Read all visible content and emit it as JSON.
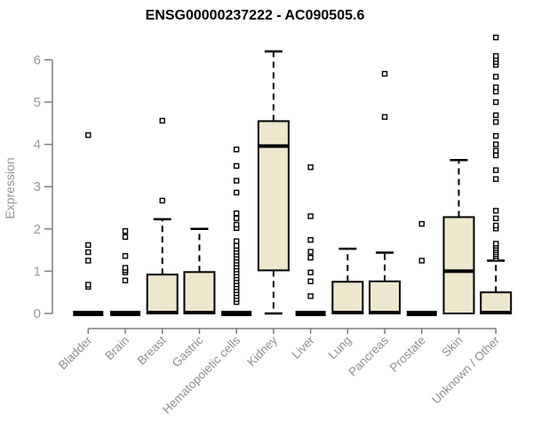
{
  "header": {
    "title": "ENSG00000237222 - AC090505.6"
  },
  "chart_data": {
    "type": "boxplot",
    "title": "ENSG00000237222 - AC090505.6",
    "xlabel": "",
    "ylabel": "Expression",
    "ylim": [
      0,
      6.6
    ],
    "yticks": [
      0,
      1,
      2,
      3,
      4,
      5,
      6
    ],
    "grid": false,
    "legend": null,
    "colors": {
      "box_fill": "#EDE7CD",
      "box_stroke": "#000000",
      "median": "#000000",
      "axis": "#7d7d7d",
      "y_tick_label": "#999999",
      "x_tick_label": "#8f8f8f",
      "title": "#000000",
      "background": "#ffffff"
    },
    "categories": [
      "Bladder",
      "Brain",
      "Breast",
      "Gastric",
      "Hematopoietic cells",
      "Kidney",
      "Liver",
      "Lung",
      "Pancreas",
      "Prostate",
      "Skin",
      "Unknown / Other"
    ],
    "boxes": [
      {
        "category": "Bladder",
        "min": 0,
        "q1": 0,
        "median": 0,
        "q3": 0,
        "max": 0,
        "outliers": [
          0.63,
          0.68,
          1.25,
          1.45,
          1.62,
          4.22
        ]
      },
      {
        "category": "Brain",
        "min": 0,
        "q1": 0,
        "median": 0,
        "q3": 0,
        "max": 0,
        "outliers": [
          0.78,
          0.97,
          1.02,
          1.08,
          1.36,
          1.81,
          1.95
        ]
      },
      {
        "category": "Breast",
        "min": 0,
        "q1": 0,
        "median": 0.02,
        "q3": 0.92,
        "max": 2.23,
        "outliers": [
          2.67,
          4.56
        ]
      },
      {
        "category": "Gastric",
        "min": 0,
        "q1": 0,
        "median": 0.02,
        "q3": 0.98,
        "max": 2.0,
        "outliers": []
      },
      {
        "category": "Hematopoietic cells",
        "min": 0,
        "q1": 0,
        "median": 0,
        "q3": 0,
        "max": 0,
        "outliers": [
          0.27,
          0.34,
          0.41,
          0.48,
          0.55,
          0.62,
          0.69,
          0.76,
          0.83,
          0.9,
          0.97,
          1.04,
          1.11,
          1.18,
          1.25,
          1.32,
          1.39,
          1.46,
          1.53,
          1.6,
          1.71,
          2.02,
          2.1,
          2.25,
          2.37,
          2.86,
          3.14,
          3.49,
          3.88
        ]
      },
      {
        "category": "Kidney",
        "min": 0,
        "q1": 1.02,
        "median": 3.96,
        "q3": 4.55,
        "max": 6.2,
        "outliers": []
      },
      {
        "category": "Liver",
        "min": 0,
        "q1": 0,
        "median": 0,
        "q3": 0,
        "max": 0,
        "outliers": [
          0.41,
          0.76,
          0.97,
          1.32,
          1.46,
          1.74,
          2.3,
          3.46
        ]
      },
      {
        "category": "Lung",
        "min": 0,
        "q1": 0,
        "median": 0.02,
        "q3": 0.75,
        "max": 1.53,
        "outliers": []
      },
      {
        "category": "Pancreas",
        "min": 0,
        "q1": 0,
        "median": 0.02,
        "q3": 0.76,
        "max": 1.44,
        "outliers": [
          4.65,
          5.67
        ]
      },
      {
        "category": "Prostate",
        "min": 0,
        "q1": 0,
        "median": 0,
        "q3": 0,
        "max": 0,
        "outliers": [
          1.25,
          2.12
        ]
      },
      {
        "category": "Skin",
        "min": 0,
        "q1": 0,
        "median": 1.0,
        "q3": 2.28,
        "max": 3.63,
        "outliers": []
      },
      {
        "category": "Unknown / Other",
        "min": 0,
        "q1": 0,
        "median": 0.02,
        "q3": 0.5,
        "max": 1.25,
        "outliers": [
          1.3,
          1.35,
          1.4,
          1.45,
          1.5,
          1.55,
          1.6,
          1.65,
          2.01,
          2.08,
          2.25,
          2.43,
          3.18,
          3.39,
          3.74,
          3.85,
          4.0,
          4.2,
          4.53,
          4.69,
          5.0,
          5.25,
          5.35,
          5.6,
          5.88,
          5.95,
          6.02,
          6.09,
          6.53
        ]
      }
    ]
  }
}
